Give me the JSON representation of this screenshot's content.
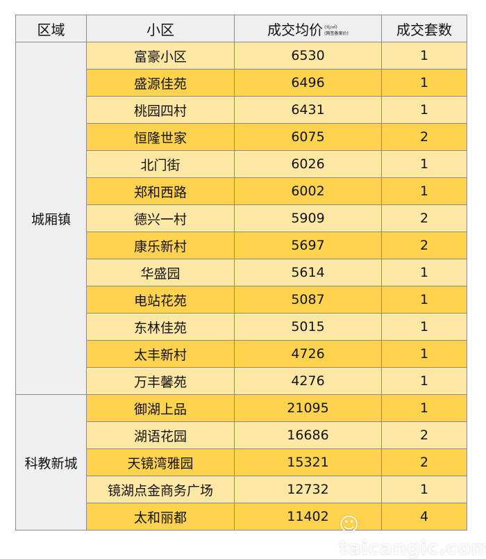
{
  "headers": {
    "region": "区域",
    "community": "小区",
    "price": "成交均价",
    "price_unit": "(元/㎡)",
    "price_note": "(网签备案价)",
    "count": "成交套数"
  },
  "groups": [
    {
      "region": "城厢镇",
      "rows": [
        {
          "name": "富豪小区",
          "price": "6530",
          "count": "1"
        },
        {
          "name": "盛源佳苑",
          "price": "6496",
          "count": "1"
        },
        {
          "name": "桃园四村",
          "price": "6431",
          "count": "1"
        },
        {
          "name": "恒隆世家",
          "price": "6075",
          "count": "2"
        },
        {
          "name": "北门街",
          "price": "6026",
          "count": "1"
        },
        {
          "name": "郑和西路",
          "price": "6002",
          "count": "1"
        },
        {
          "name": "德兴一村",
          "price": "5909",
          "count": "2"
        },
        {
          "name": "康乐新村",
          "price": "5697",
          "count": "2"
        },
        {
          "name": "华盛园",
          "price": "5614",
          "count": "1"
        },
        {
          "name": "电站花苑",
          "price": "5087",
          "count": "1"
        },
        {
          "name": "东林佳苑",
          "price": "5015",
          "count": "1"
        },
        {
          "name": "太丰新村",
          "price": "4726",
          "count": "1"
        },
        {
          "name": "万丰馨苑",
          "price": "4276",
          "count": "1"
        }
      ]
    },
    {
      "region": "科教新城",
      "rows": [
        {
          "name": "御湖上品",
          "price": "21095",
          "count": "1"
        },
        {
          "name": "湖语花园",
          "price": "16686",
          "count": "2"
        },
        {
          "name": "天镜湾雅园",
          "price": "15321",
          "count": "2"
        },
        {
          "name": "镜湖点金商务广场",
          "price": "12732",
          "count": "1"
        },
        {
          "name": "太和丽都",
          "price": "11402",
          "count": "4"
        }
      ]
    }
  ],
  "watermark": "☺ taicangic.com",
  "colors": {
    "light": "#FFE8A3",
    "dark": "#FFD34E",
    "header": "#efefef"
  }
}
